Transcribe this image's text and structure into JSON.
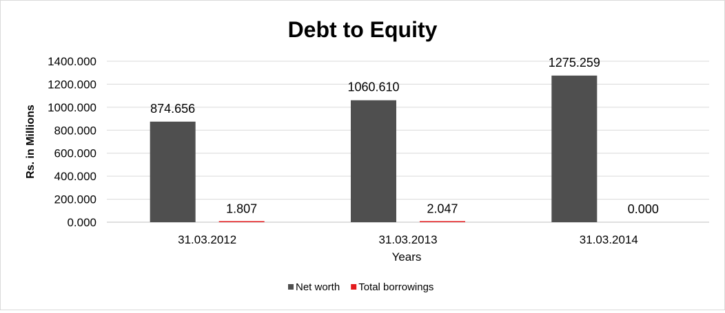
{
  "chart_data": {
    "type": "bar",
    "title": "Debt to Equity",
    "xlabel": "Years",
    "ylabel": "Rs. in Millions",
    "categories": [
      "31.03.2012",
      "31.03.2013",
      "31.03.2014"
    ],
    "series": [
      {
        "name": "Net worth",
        "color": "#4f4f4f",
        "values": [
          874.656,
          1060.61,
          1275.259
        ],
        "labels": [
          "874.656",
          "1060.610",
          "1275.259"
        ]
      },
      {
        "name": "Total borrowings",
        "color": "#e31a1c",
        "values": [
          1.807,
          2.047,
          0.0
        ],
        "labels": [
          "1.807",
          "2.047",
          "0.000"
        ]
      }
    ],
    "ylim": [
      0,
      1400
    ],
    "yticks": [
      0,
      200,
      400,
      600,
      800,
      1000,
      1200,
      1400
    ],
    "ytick_labels": [
      "0.000",
      "200.000",
      "400.000",
      "600.000",
      "800.000",
      "1000.000",
      "1200.000",
      "1400.000"
    ],
    "grid": true,
    "legend_position": "bottom"
  }
}
